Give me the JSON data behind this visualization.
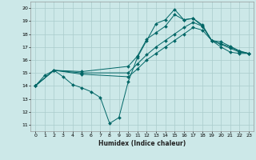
{
  "xlabel": "Humidex (Indice chaleur)",
  "xlim": [
    -0.5,
    23.5
  ],
  "ylim": [
    10.5,
    20.5
  ],
  "xticks": [
    0,
    1,
    2,
    3,
    4,
    5,
    6,
    7,
    8,
    9,
    10,
    11,
    12,
    13,
    14,
    15,
    16,
    17,
    18,
    19,
    20,
    21,
    22,
    23
  ],
  "yticks": [
    11,
    12,
    13,
    14,
    15,
    16,
    17,
    18,
    19,
    20
  ],
  "bg_color": "#cce8e8",
  "grid_color": "#aacccc",
  "line_color": "#006666",
  "curve1_x": [
    0,
    1,
    2,
    3,
    4,
    5,
    6,
    7,
    8,
    9,
    10,
    11,
    12,
    13,
    14,
    15,
    16,
    17,
    18,
    19,
    20,
    21,
    22,
    23
  ],
  "curve1_y": [
    14.0,
    14.8,
    15.2,
    14.7,
    14.1,
    13.85,
    13.55,
    13.1,
    11.1,
    11.55,
    14.3,
    16.2,
    17.5,
    18.8,
    19.1,
    19.9,
    19.1,
    19.2,
    18.6,
    17.5,
    17.0,
    16.6,
    16.5,
    16.5
  ],
  "curve2_x": [
    0,
    2,
    5,
    10,
    11,
    12,
    13,
    14,
    15,
    16,
    17,
    18,
    19,
    20,
    21,
    22,
    23
  ],
  "curve2_y": [
    14.0,
    15.2,
    15.1,
    15.5,
    16.3,
    17.6,
    18.1,
    18.6,
    19.5,
    19.1,
    19.2,
    18.7,
    17.5,
    17.4,
    17.05,
    16.7,
    16.5
  ],
  "curve3_x": [
    0,
    2,
    5,
    10,
    11,
    12,
    13,
    14,
    15,
    16,
    17,
    18,
    19,
    20,
    21,
    22,
    23
  ],
  "curve3_y": [
    14.0,
    15.2,
    15.0,
    15.0,
    15.7,
    16.4,
    17.0,
    17.5,
    18.0,
    18.5,
    18.9,
    18.6,
    17.5,
    17.25,
    17.0,
    16.65,
    16.5
  ],
  "curve4_x": [
    0,
    2,
    5,
    10,
    11,
    12,
    13,
    14,
    15,
    16,
    17,
    18,
    19,
    20,
    21,
    22,
    23
  ],
  "curve4_y": [
    14.0,
    15.2,
    14.9,
    14.7,
    15.3,
    16.0,
    16.5,
    17.0,
    17.5,
    18.0,
    18.5,
    18.3,
    17.5,
    17.2,
    16.9,
    16.6,
    16.5
  ]
}
